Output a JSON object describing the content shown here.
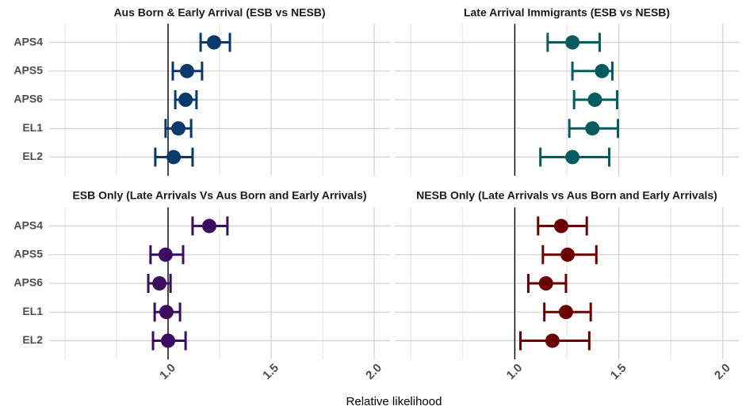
{
  "axis_title": "Relative likelihood",
  "chart_data": [
    {
      "type": "forest",
      "title": "Aus Born & Early Arrival (ESB vs NESB)",
      "color": "#073a6b",
      "categories": [
        "APS4",
        "APS5",
        "APS6",
        "EL1",
        "EL2"
      ],
      "values": [
        1.223,
        1.092,
        1.085,
        1.05,
        1.027
      ],
      "lower": [
        1.158,
        1.023,
        1.035,
        0.988,
        0.938
      ],
      "upper": [
        1.3,
        1.165,
        1.138,
        1.112,
        1.119
      ],
      "xlim": [
        0.423,
        2.077
      ],
      "xticks": [
        {
          "value": 1,
          "label": "1.0"
        },
        {
          "value": 1.5,
          "label": "1.5"
        },
        {
          "value": 2,
          "label": "2.0"
        }
      ],
      "xminor": [
        0.5,
        0.75,
        1.25,
        1.75
      ],
      "reference_line": 1,
      "grid": true
    },
    {
      "type": "forest",
      "title": "Late Arrival Immigrants (ESB vs NESB)",
      "color": "#045b60",
      "categories": [
        "APS4",
        "APS5",
        "APS6",
        "EL1",
        "EL2"
      ],
      "values": [
        1.277,
        1.419,
        1.385,
        1.373,
        1.277
      ],
      "lower": [
        1.158,
        1.277,
        1.285,
        1.262,
        1.123
      ],
      "upper": [
        1.408,
        1.469,
        1.492,
        1.496,
        1.454
      ],
      "xlim": [
        0.423,
        2.077
      ],
      "xticks": [
        {
          "value": 1,
          "label": "1.0"
        },
        {
          "value": 1.5,
          "label": "1.5"
        },
        {
          "value": 2,
          "label": "2.0"
        }
      ],
      "xminor": [
        0.5,
        0.75,
        1.25,
        1.75
      ],
      "reference_line": 1,
      "grid": true
    },
    {
      "type": "forest",
      "title": "ESB Only (Late Arrivals Vs Aus Born and Early Arrivals)",
      "color": "#3b0c5f",
      "categories": [
        "APS4",
        "APS5",
        "APS6",
        "EL1",
        "EL2"
      ],
      "values": [
        1.2,
        0.988,
        0.958,
        0.992,
        1.0
      ],
      "lower": [
        1.119,
        0.915,
        0.904,
        0.935,
        0.927
      ],
      "upper": [
        1.288,
        1.073,
        1.012,
        1.058,
        1.085
      ],
      "xlim": [
        0.423,
        2.077
      ],
      "xticks": [
        {
          "value": 1,
          "label": "1.0"
        },
        {
          "value": 1.5,
          "label": "1.5"
        },
        {
          "value": 2,
          "label": "2.0"
        }
      ],
      "xminor": [
        0.5,
        0.75,
        1.25,
        1.75
      ],
      "reference_line": 1,
      "grid": true
    },
    {
      "type": "forest",
      "title": "NESB Only (Late Arrivals vs Aus Born and Early Arrivals)",
      "color": "#6b0000",
      "categories": [
        "APS4",
        "APS5",
        "APS6",
        "EL1",
        "EL2"
      ],
      "values": [
        1.223,
        1.254,
        1.15,
        1.246,
        1.181
      ],
      "lower": [
        1.112,
        1.135,
        1.065,
        1.142,
        1.027
      ],
      "upper": [
        1.346,
        1.392,
        1.246,
        1.365,
        1.358
      ],
      "xlim": [
        0.423,
        2.077
      ],
      "xticks": [
        {
          "value": 1,
          "label": "1.0"
        },
        {
          "value": 1.5,
          "label": "1.5"
        },
        {
          "value": 2,
          "label": "2.0"
        }
      ],
      "xminor": [
        0.5,
        0.75,
        1.25,
        1.75
      ],
      "reference_line": 1,
      "grid": true
    }
  ]
}
